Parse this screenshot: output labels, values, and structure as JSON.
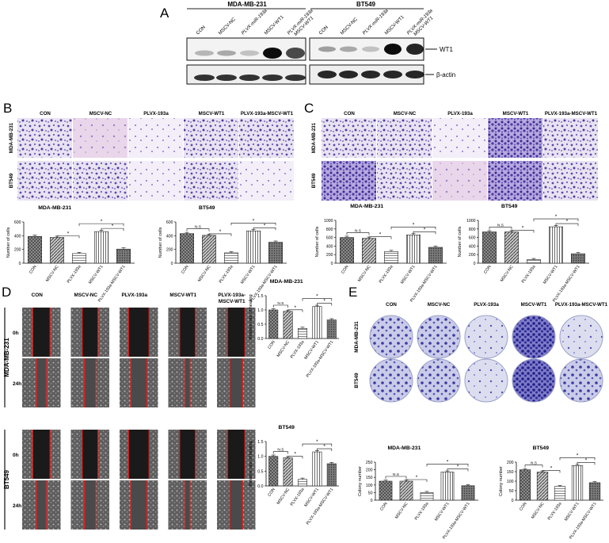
{
  "panels": {
    "A": {
      "letter": "A",
      "group1": "MDA-MB-231",
      "group2": "BT549",
      "lanes": [
        "CON",
        "MSCV-NC",
        "PLVX-miR-193a",
        "MSCV-WT1",
        "PLVX-miR-193a\nMSCV-WT1"
      ],
      "band_wt1": "WT1",
      "band_actin": "β-actin"
    },
    "B": {
      "letter": "B",
      "columns": [
        "CON",
        "MSCV-NC",
        "PLVX-193a",
        "MSCV-WT1",
        "PLVX-193a-MSCV-WT1"
      ],
      "rows": [
        "MDA-MB-231",
        "BT549"
      ]
    },
    "C": {
      "letter": "C",
      "columns": [
        "CON",
        "MSCV-NC",
        "PLVX-193a",
        "MSCV-WT1",
        "PLVX-193a-MSCV-WT1"
      ],
      "rows": [
        "MDA-MB-231",
        "BT549"
      ]
    },
    "D": {
      "letter": "D",
      "columns": [
        "CON",
        "MSCV-NC",
        "PLVX-193a",
        "MSCV-WT1",
        "PLVX-193a-",
        "MSCV-WT1"
      ],
      "cell_lines": [
        "MDA-MB-231",
        "BT549"
      ],
      "times": [
        "0h",
        "24h"
      ]
    },
    "E": {
      "letter": "E",
      "columns": [
        "CON",
        "MSCV-NC",
        "PLVX-193a",
        "MSCV-WT1",
        "PLVX-193a-MSCV-WT1"
      ],
      "rows": [
        "MDA-MB-231",
        "BT549"
      ]
    }
  },
  "chart_data": [
    {
      "id": "B1",
      "type": "bar",
      "title": "MDA-MB-231",
      "ylabel": "Number of cells",
      "ylim": [
        0,
        600
      ],
      "yticks": [
        0,
        200,
        400,
        600
      ],
      "categories": [
        "CON",
        "MSCV-NC",
        "PLVX-193a",
        "MSCV-WT1",
        "PLVX-193a-MSCV-WT1"
      ],
      "values": [
        390,
        375,
        140,
        460,
        205
      ],
      "annotations": [
        "*",
        "*",
        "*"
      ]
    },
    {
      "id": "B2",
      "type": "bar",
      "title": "BT549",
      "ylabel": "Number of cells",
      "ylim": [
        0,
        600
      ],
      "yticks": [
        0,
        200,
        400,
        600
      ],
      "categories": [
        "CON",
        "MSCV-NC",
        "PLVX-193a",
        "MSCV-WT1",
        "PLVX-193a-MSCV-WT1"
      ],
      "values": [
        430,
        405,
        150,
        470,
        305
      ],
      "annotations": [
        "N.S",
        "*",
        "*",
        "*"
      ]
    },
    {
      "id": "C1",
      "type": "bar",
      "title": "MDA-MB-231",
      "ylabel": "Number of cells",
      "ylim": [
        0,
        1000
      ],
      "yticks": [
        0,
        200,
        400,
        600,
        800,
        1000
      ],
      "categories": [
        "CON",
        "MSCV-NC",
        "PLVX-193a",
        "MSCV-WT1",
        "PLVX-193a-MSCV-WT1"
      ],
      "values": [
        600,
        580,
        270,
        660,
        370
      ],
      "annotations": [
        "N.S",
        "*",
        "*",
        "*"
      ]
    },
    {
      "id": "C2",
      "type": "bar",
      "title": "BT549",
      "ylabel": "Number of cells",
      "ylim": [
        0,
        1000
      ],
      "yticks": [
        0,
        200,
        400,
        600,
        800,
        1000
      ],
      "categories": [
        "CON",
        "MSCV-NC",
        "PLVX-193a",
        "MSCV-WT1",
        "PLVX-193a-MSCV-WT1"
      ],
      "values": [
        730,
        730,
        80,
        850,
        220
      ],
      "annotations": [
        "N.S",
        "*",
        "*",
        "*"
      ]
    },
    {
      "id": "D1",
      "type": "bar",
      "title": "MDA-MB-231",
      "ylabel": "Relative rate of healing",
      "ylim": [
        0,
        1.5
      ],
      "yticks": [
        0.0,
        0.5,
        1.0,
        1.5
      ],
      "categories": [
        "CON",
        "MSCV-NC",
        "PLVX-193a",
        "MSCV-WT1",
        "PLVX-193a-MSCV-WT1"
      ],
      "values": [
        1.0,
        0.95,
        0.35,
        1.12,
        0.65
      ],
      "annotations": [
        "N.S",
        "*",
        "*",
        "*"
      ]
    },
    {
      "id": "D2",
      "type": "bar",
      "title": "BT549",
      "ylabel": "Relative rate of healing",
      "ylim": [
        0,
        1.5
      ],
      "yticks": [
        0.0,
        0.5,
        1.0,
        1.5
      ],
      "categories": [
        "CON",
        "MSCV-NC",
        "PLVX-193a",
        "MSCV-WT1",
        "PLVX-193a-MSCV-WT1"
      ],
      "values": [
        1.0,
        0.95,
        0.22,
        1.15,
        0.75
      ],
      "annotations": [
        "N.S",
        "*",
        "*",
        "*"
      ]
    },
    {
      "id": "E1",
      "type": "bar",
      "title": "MDA-MB-231",
      "ylabel": "Colony number",
      "ylim": [
        0,
        250
      ],
      "yticks": [
        0,
        50,
        100,
        150,
        200,
        250
      ],
      "categories": [
        "CON",
        "MSCV-NC",
        "PLVX-193a",
        "MSCV-WT1",
        "PLVX-193a-MSCV-WT1"
      ],
      "values": [
        125,
        125,
        50,
        185,
        95
      ],
      "annotations": [
        "N.S",
        "*",
        "*",
        "*"
      ]
    },
    {
      "id": "E2",
      "type": "bar",
      "title": "BT549",
      "ylabel": "Colony number",
      "ylim": [
        0,
        200
      ],
      "yticks": [
        0,
        50,
        100,
        150,
        200
      ],
      "categories": [
        "CON",
        "MSCV-NC",
        "PLVX-193a",
        "MSCV-WT1",
        "PLVX-193a-MSCV-WT1"
      ],
      "values": [
        160,
        148,
        72,
        182,
        92
      ],
      "annotations": [
        "N.S",
        "*",
        "*",
        "*"
      ]
    }
  ]
}
